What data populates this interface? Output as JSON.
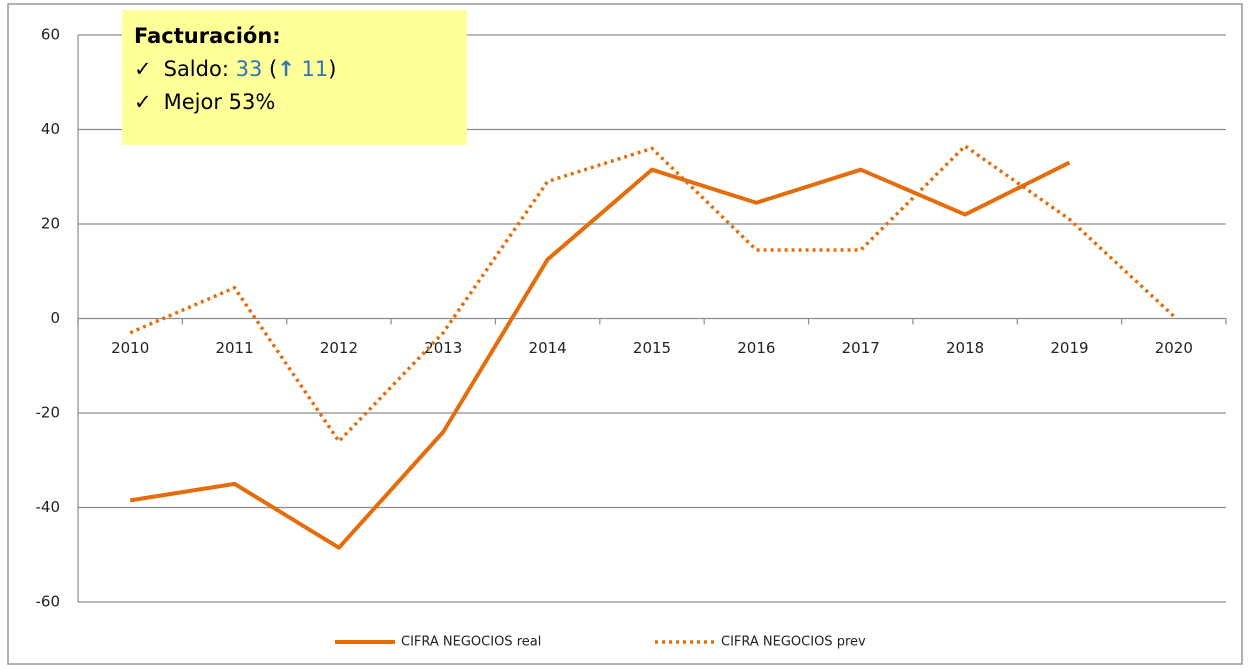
{
  "chart_data": {
    "type": "line",
    "categories": [
      "2010",
      "2011",
      "2012",
      "2013",
      "2014",
      "2015",
      "2016",
      "2017",
      "2018",
      "2019",
      "2020"
    ],
    "series": [
      {
        "name": "CIFRA NEGOCIOS real",
        "color": "#e46c0a",
        "style": "solid",
        "values": [
          -38.5,
          -35,
          -48.5,
          -24,
          12.5,
          31.5,
          24.5,
          31.5,
          22,
          33,
          null
        ]
      },
      {
        "name": "CIFRA NEGOCIOS prev",
        "color": "#e46c0a",
        "style": "dotted",
        "values": [
          -3,
          6.5,
          -26,
          -3,
          29,
          36,
          14.5,
          14.5,
          36.5,
          21,
          0.5
        ]
      }
    ],
    "ylim": [
      -60,
      60
    ],
    "yticks": [
      -60,
      -40,
      -20,
      0,
      20,
      40,
      60
    ],
    "grid": true,
    "legend": "bottom",
    "annotation": {
      "heading": "Facturación:",
      "lines": [
        {
          "check": "✓",
          "parts": [
            {
              "text": "Saldo: "
            },
            {
              "text": "33",
              "color": "#2e75b6"
            },
            {
              "text": " ("
            },
            {
              "text": "↑",
              "color": "#2e75b6",
              "bold": true
            },
            {
              "text": " 11",
              "color": "#2e75b6"
            },
            {
              "text": ")"
            }
          ]
        },
        {
          "check": "✓",
          "parts": [
            {
              "text": "Mejor 53%"
            }
          ]
        }
      ]
    }
  }
}
